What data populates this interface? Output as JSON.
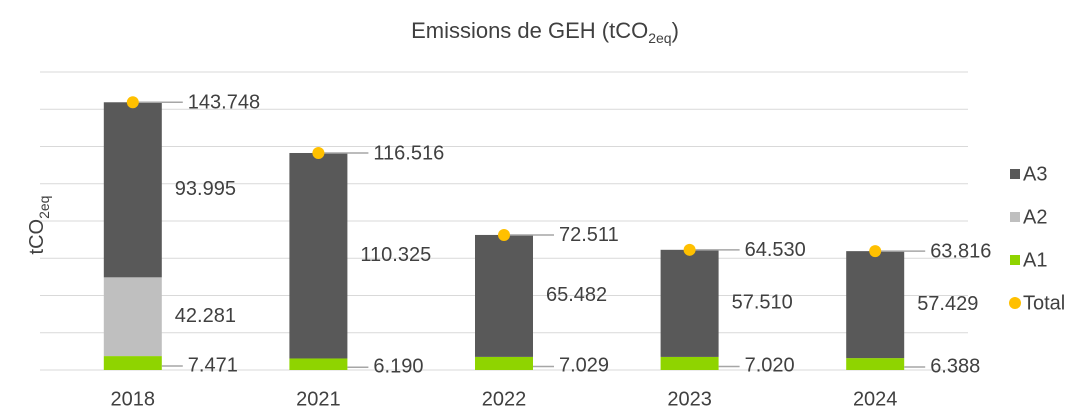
{
  "chart_data": {
    "type": "stacked_bar",
    "title": [
      "Emissions de GEH (tCO",
      "2eq",
      ")"
    ],
    "y_label": [
      "tCO",
      "2eq"
    ],
    "categories": [
      "2018",
      "2021",
      "2022",
      "2023",
      "2024"
    ],
    "series": [
      {
        "name": "A1",
        "color": "#8fd400",
        "values": [
          7471,
          6190,
          7029,
          7020,
          6388
        ],
        "value_labels": [
          "7.471",
          "6.190",
          "7.029",
          "7.020",
          "6.388"
        ]
      },
      {
        "name": "A2",
        "color": "#bfbfbf",
        "values": [
          42281,
          null,
          null,
          null,
          null
        ],
        "value_labels": [
          "42.281",
          null,
          null,
          null,
          null
        ]
      },
      {
        "name": "A3",
        "color": "#595959",
        "values": [
          93995,
          110325,
          65482,
          57510,
          57429
        ],
        "value_labels": [
          "93.995",
          "110.325",
          "65.482",
          "57.510",
          "57.429"
        ]
      },
      {
        "name": "Total",
        "color": "#ffc000",
        "type": "marker",
        "values": [
          143748,
          116516,
          72511,
          64530,
          63816
        ],
        "value_labels": [
          "143.748",
          "116.516",
          "72.511",
          "64.530",
          "63.816"
        ]
      }
    ],
    "ylim": [
      0,
      160000
    ],
    "yticks": [
      0,
      20000,
      40000,
      60000,
      80000,
      100000,
      120000,
      140000,
      160000
    ],
    "grid": true,
    "legend": "right"
  }
}
